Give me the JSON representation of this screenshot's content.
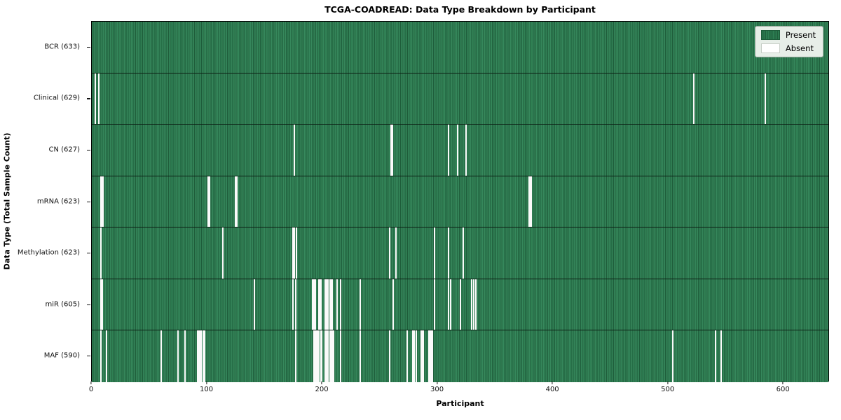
{
  "title": "TCGA-COADREAD: Data Type Breakdown by Participant",
  "axes": {
    "x_label": "Participant",
    "y_label": "Data Type (Total Sample Count)",
    "x_ticks": [
      0,
      100,
      200,
      300,
      400,
      500,
      600
    ],
    "x_max": 640
  },
  "legend": {
    "position": "upper-right",
    "entries": [
      {
        "label": "Present",
        "color": "#2f8154",
        "edge": "#1e5c3a"
      },
      {
        "label": "Absent",
        "color": "#ffffff",
        "edge": "#c8cfc8"
      }
    ]
  },
  "colors": {
    "present_green": "#2f8154",
    "absent_white": "#fafafa",
    "row_separator": "#0c1f14",
    "spine": "#000000",
    "legend_bg": "#e7eee8"
  },
  "chart_data": {
    "type": "heatmap",
    "subtype": "presence-absence-matrix",
    "title": "TCGA-COADREAD: Data Type Breakdown by Participant",
    "xlabel": "Participant",
    "ylabel": "Data Type (Total Sample Count)",
    "x_range": [
      0,
      633
    ],
    "total_participants": 633,
    "grid": false,
    "legend_entries": [
      "Present",
      "Absent"
    ],
    "rows": [
      {
        "label": "BCR (633)",
        "data_type": "BCR",
        "present_count": 633,
        "absent_count": 0,
        "absent_participants": []
      },
      {
        "label": "Clinical (629)",
        "data_type": "Clinical",
        "present_count": 629,
        "absent_count": 4,
        "absent_participants": [
          3,
          6,
          523,
          585
        ]
      },
      {
        "label": "CN (627)",
        "data_type": "CN",
        "present_count": 627,
        "absent_count": 6,
        "absent_participants": [
          176,
          260,
          261,
          310,
          318,
          325
        ]
      },
      {
        "label": "mRNA (623)",
        "data_type": "mRNA",
        "present_count": 623,
        "absent_count": 10,
        "absent_participants": [
          8,
          9,
          10,
          101,
          102,
          125,
          126,
          380,
          381,
          382
        ]
      },
      {
        "label": "Methylation (623)",
        "data_type": "Methylation",
        "present_count": 623,
        "absent_count": 10,
        "absent_participants": [
          8,
          114,
          175,
          176,
          178,
          259,
          264,
          298,
          310,
          323
        ]
      },
      {
        "label": "miR (605)",
        "data_type": "miR",
        "present_count": 605,
        "absent_count": 28,
        "absent_participants": [
          8,
          9,
          141,
          175,
          177,
          192,
          193,
          194,
          197,
          198,
          199,
          203,
          204,
          205,
          207,
          208,
          209,
          213,
          216,
          233,
          262,
          298,
          310,
          312,
          320,
          330,
          332,
          334
        ]
      },
      {
        "label": "MAF (590)",
        "data_type": "MAF",
        "present_count": 590,
        "absent_count": 43,
        "absent_participants": [
          8,
          13,
          60,
          75,
          81,
          92,
          93,
          94,
          95,
          97,
          98,
          177,
          193,
          194,
          195,
          196,
          197,
          199,
          200,
          203,
          204,
          205,
          207,
          208,
          209,
          210,
          216,
          233,
          259,
          274,
          279,
          280,
          282,
          286,
          287,
          288,
          293,
          294,
          295,
          296,
          505,
          542,
          547
        ]
      }
    ]
  }
}
